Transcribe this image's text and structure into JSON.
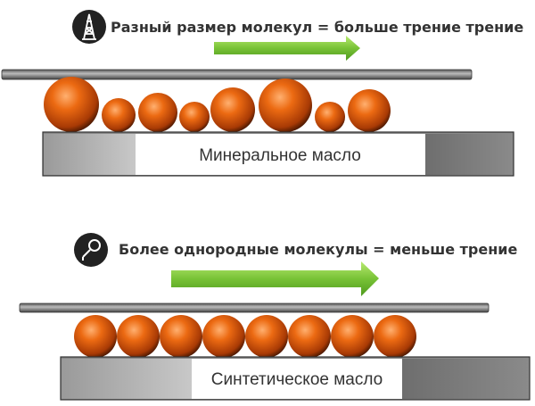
{
  "panels": [
    {
      "caption": "Разный размер молекул = больше трение трение",
      "icon": "oil-derrick-icon",
      "block_label": "Минеральное масло",
      "molecule_sizes": "varied"
    },
    {
      "caption": "Более однородные молекулы = меньше трение",
      "icon": "magnifier-drop-icon",
      "block_label": "Синтетическое масло",
      "molecule_sizes": "uniform"
    }
  ],
  "colors": {
    "molecule": "#e2620f",
    "arrow": "#7cc63a",
    "plate": "#888888",
    "icon_bg": "#222222"
  }
}
